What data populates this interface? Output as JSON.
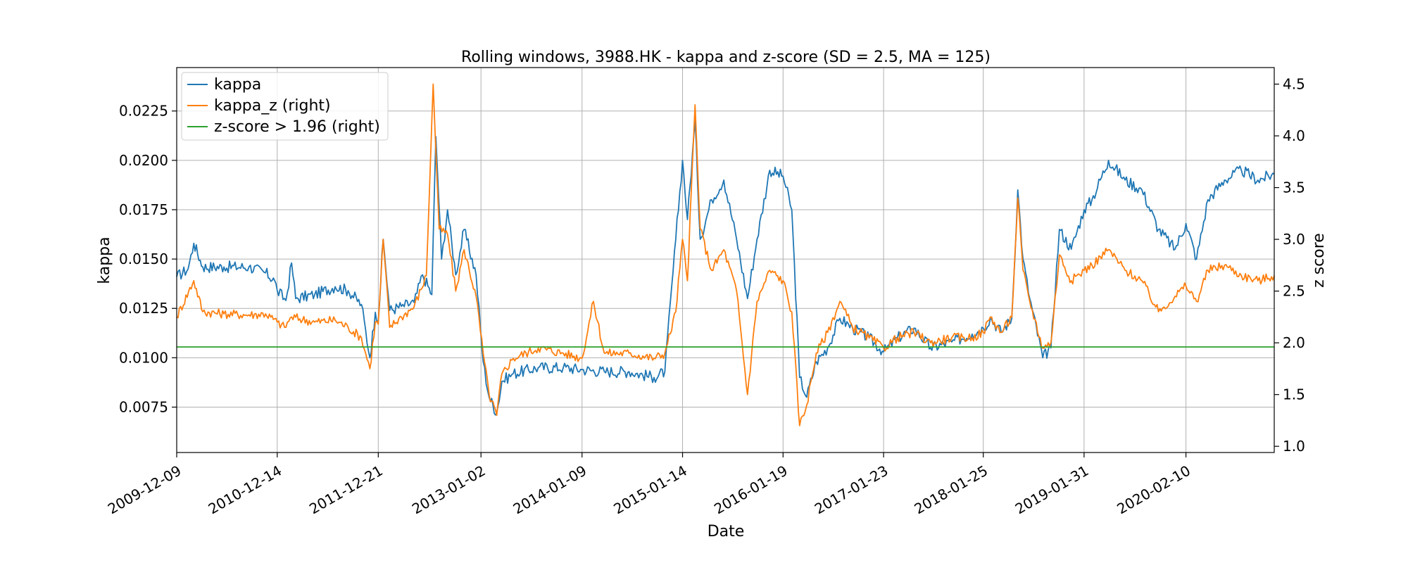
{
  "chart_data": {
    "type": "line",
    "title": "Rolling windows, 3988.HK - kappa and z-score (SD = 2.5, MA = 125)",
    "xlabel": "Date",
    "ylabel": "kappa",
    "ylabel_right": "z score",
    "x_ticks": [
      "2009-12-09",
      "2010-12-14",
      "2011-12-21",
      "2013-01-02",
      "2014-01-09",
      "2015-01-14",
      "2016-01-19",
      "2017-01-23",
      "2018-01-25",
      "2019-01-31",
      "2020-02-10"
    ],
    "xlim": [
      "2009-12-09",
      "2020-12-31"
    ],
    "ylim": [
      0.0052,
      0.0247
    ],
    "ylim_right": [
      0.94,
      4.66
    ],
    "y_ticks": [
      "0.0075",
      "0.0100",
      "0.0125",
      "0.0150",
      "0.0175",
      "0.0200",
      "0.0225"
    ],
    "y_ticks_right": [
      "1.0",
      "1.5",
      "2.0",
      "2.5",
      "3.0",
      "3.5",
      "4.0",
      "4.5"
    ],
    "grid": true,
    "legend_position": "top-left",
    "colors": {
      "kappa": "#1f77b4",
      "kappa_z": "#ff7f0e",
      "threshold": "#2ca02c"
    },
    "series": [
      {
        "name": "kappa",
        "axis": "left",
        "points": [
          [
            "2009-12-09",
            0.0141
          ],
          [
            "2010-01-20",
            0.0145
          ],
          [
            "2010-02-10",
            0.0158
          ],
          [
            "2010-03-15",
            0.0146
          ],
          [
            "2010-06-01",
            0.0146
          ],
          [
            "2010-09-01",
            0.0146
          ],
          [
            "2010-11-01",
            0.0143
          ],
          [
            "2010-12-05",
            0.0139
          ],
          [
            "2010-12-14",
            0.0134
          ],
          [
            "2011-01-15",
            0.0129
          ],
          [
            "2011-02-05",
            0.0148
          ],
          [
            "2011-02-20",
            0.013
          ],
          [
            "2011-05-01",
            0.0132
          ],
          [
            "2011-07-15",
            0.0136
          ],
          [
            "2011-09-01",
            0.0134
          ],
          [
            "2011-10-20",
            0.0127
          ],
          [
            "2011-11-20",
            0.01
          ],
          [
            "2011-12-10",
            0.0123
          ],
          [
            "2011-12-21",
            0.0119
          ],
          [
            "2012-01-08",
            0.016
          ],
          [
            "2012-02-01",
            0.0124
          ],
          [
            "2012-03-15",
            0.0126
          ],
          [
            "2012-05-01",
            0.0128
          ],
          [
            "2012-06-01",
            0.0142
          ],
          [
            "2012-07-05",
            0.0132
          ],
          [
            "2012-07-20",
            0.0212
          ],
          [
            "2012-08-10",
            0.015
          ],
          [
            "2012-09-01",
            0.0175
          ],
          [
            "2012-10-01",
            0.0142
          ],
          [
            "2012-11-01",
            0.0165
          ],
          [
            "2012-12-15",
            0.0142
          ],
          [
            "2013-01-10",
            0.0098
          ],
          [
            "2013-02-01",
            0.008
          ],
          [
            "2013-03-01",
            0.0072
          ],
          [
            "2013-03-20",
            0.0088
          ],
          [
            "2013-05-01",
            0.0092
          ],
          [
            "2013-08-01",
            0.0095
          ],
          [
            "2013-11-01",
            0.0095
          ],
          [
            "2014-01-09",
            0.0094
          ],
          [
            "2014-04-01",
            0.0093
          ],
          [
            "2014-07-01",
            0.0093
          ],
          [
            "2014-10-01",
            0.009
          ],
          [
            "2014-11-10",
            0.0093
          ],
          [
            "2014-12-20",
            0.016
          ],
          [
            "2015-01-14",
            0.02
          ],
          [
            "2015-02-01",
            0.017
          ],
          [
            "2015-03-01",
            0.022
          ],
          [
            "2015-03-20",
            0.016
          ],
          [
            "2015-05-01",
            0.018
          ],
          [
            "2015-06-15",
            0.019
          ],
          [
            "2015-08-01",
            0.016
          ],
          [
            "2015-09-10",
            0.013
          ],
          [
            "2015-10-15",
            0.016
          ],
          [
            "2015-12-01",
            0.0195
          ],
          [
            "2016-01-19",
            0.0192
          ],
          [
            "2016-02-20",
            0.0175
          ],
          [
            "2016-03-20",
            0.009
          ],
          [
            "2016-04-15",
            0.008
          ],
          [
            "2016-05-20",
            0.0098
          ],
          [
            "2016-07-01",
            0.0105
          ],
          [
            "2016-08-15",
            0.012
          ],
          [
            "2016-10-01",
            0.0115
          ],
          [
            "2016-12-01",
            0.011
          ],
          [
            "2017-01-23",
            0.0103
          ],
          [
            "2017-03-15",
            0.011
          ],
          [
            "2017-05-15",
            0.0115
          ],
          [
            "2017-07-15",
            0.0105
          ],
          [
            "2017-10-01",
            0.0108
          ],
          [
            "2017-12-15",
            0.0112
          ],
          [
            "2018-01-25",
            0.0115
          ],
          [
            "2018-02-20",
            0.012
          ],
          [
            "2018-04-01",
            0.0113
          ],
          [
            "2018-05-10",
            0.012
          ],
          [
            "2018-06-01",
            0.0185
          ],
          [
            "2018-06-20",
            0.015
          ],
          [
            "2018-07-15",
            0.013
          ],
          [
            "2018-09-01",
            0.01
          ],
          [
            "2018-10-01",
            0.0105
          ],
          [
            "2018-11-01",
            0.0165
          ],
          [
            "2018-12-15",
            0.0155
          ],
          [
            "2019-01-31",
            0.0175
          ],
          [
            "2019-03-01",
            0.018
          ],
          [
            "2019-05-01",
            0.02
          ],
          [
            "2019-07-01",
            0.019
          ],
          [
            "2019-09-01",
            0.0185
          ],
          [
            "2019-11-01",
            0.0165
          ],
          [
            "2020-01-01",
            0.0155
          ],
          [
            "2020-02-10",
            0.0168
          ],
          [
            "2020-03-20",
            0.015
          ],
          [
            "2020-05-01",
            0.018
          ],
          [
            "2020-07-01",
            0.019
          ],
          [
            "2020-09-01",
            0.0195
          ],
          [
            "2020-11-01",
            0.019
          ],
          [
            "2020-12-31",
            0.0193
          ]
        ]
      },
      {
        "name": "kappa_z (right)",
        "axis": "right",
        "points": [
          [
            "2009-12-09",
            2.25
          ],
          [
            "2010-02-10",
            2.6
          ],
          [
            "2010-03-15",
            2.3
          ],
          [
            "2010-06-01",
            2.28
          ],
          [
            "2010-09-01",
            2.27
          ],
          [
            "2010-11-01",
            2.28
          ],
          [
            "2010-12-14",
            2.2
          ],
          [
            "2011-01-10",
            2.15
          ],
          [
            "2011-02-05",
            2.25
          ],
          [
            "2011-05-01",
            2.2
          ],
          [
            "2011-07-15",
            2.22
          ],
          [
            "2011-09-01",
            2.15
          ],
          [
            "2011-10-20",
            2.05
          ],
          [
            "2011-11-20",
            1.75
          ],
          [
            "2011-12-10",
            2.2
          ],
          [
            "2011-12-21",
            2.18
          ],
          [
            "2012-01-08",
            3.0
          ],
          [
            "2012-02-01",
            2.15
          ],
          [
            "2012-03-15",
            2.25
          ],
          [
            "2012-05-01",
            2.35
          ],
          [
            "2012-06-15",
            2.65
          ],
          [
            "2012-07-10",
            4.5
          ],
          [
            "2012-08-01",
            3.1
          ],
          [
            "2012-09-01",
            3.05
          ],
          [
            "2012-10-01",
            2.5
          ],
          [
            "2012-11-01",
            2.9
          ],
          [
            "2012-12-15",
            2.45
          ],
          [
            "2013-01-10",
            1.9
          ],
          [
            "2013-02-01",
            1.5
          ],
          [
            "2013-03-01",
            1.3
          ],
          [
            "2013-03-20",
            1.7
          ],
          [
            "2013-05-01",
            1.85
          ],
          [
            "2013-08-01",
            1.95
          ],
          [
            "2013-11-01",
            1.9
          ],
          [
            "2014-01-09",
            1.85
          ],
          [
            "2014-02-20",
            2.4
          ],
          [
            "2014-04-01",
            1.9
          ],
          [
            "2014-07-01",
            1.9
          ],
          [
            "2014-10-01",
            1.85
          ],
          [
            "2014-11-10",
            1.9
          ],
          [
            "2014-12-20",
            2.3
          ],
          [
            "2015-01-14",
            3.0
          ],
          [
            "2015-02-01",
            2.6
          ],
          [
            "2015-03-01",
            4.3
          ],
          [
            "2015-03-20",
            3.1
          ],
          [
            "2015-05-01",
            2.7
          ],
          [
            "2015-06-15",
            2.9
          ],
          [
            "2015-08-01",
            2.5
          ],
          [
            "2015-09-10",
            1.5
          ],
          [
            "2015-10-15",
            2.4
          ],
          [
            "2015-12-01",
            2.7
          ],
          [
            "2016-01-19",
            2.6
          ],
          [
            "2016-02-20",
            2.3
          ],
          [
            "2016-03-20",
            1.2
          ],
          [
            "2016-04-15",
            1.4
          ],
          [
            "2016-05-20",
            1.9
          ],
          [
            "2016-07-01",
            2.1
          ],
          [
            "2016-08-15",
            2.4
          ],
          [
            "2016-10-01",
            2.15
          ],
          [
            "2016-12-01",
            2.05
          ],
          [
            "2017-01-23",
            1.95
          ],
          [
            "2017-03-15",
            2.05
          ],
          [
            "2017-05-15",
            2.1
          ],
          [
            "2017-07-15",
            2.0
          ],
          [
            "2017-10-01",
            2.05
          ],
          [
            "2017-12-15",
            2.05
          ],
          [
            "2018-01-25",
            2.1
          ],
          [
            "2018-02-20",
            2.25
          ],
          [
            "2018-04-01",
            2.1
          ],
          [
            "2018-05-10",
            2.25
          ],
          [
            "2018-06-01",
            3.4
          ],
          [
            "2018-06-20",
            2.7
          ],
          [
            "2018-07-15",
            2.4
          ],
          [
            "2018-09-01",
            1.95
          ],
          [
            "2018-10-01",
            2.0
          ],
          [
            "2018-11-01",
            2.85
          ],
          [
            "2018-12-15",
            2.6
          ],
          [
            "2019-01-31",
            2.7
          ],
          [
            "2019-03-01",
            2.75
          ],
          [
            "2019-05-01",
            2.9
          ],
          [
            "2019-07-01",
            2.7
          ],
          [
            "2019-09-01",
            2.6
          ],
          [
            "2019-11-01",
            2.3
          ],
          [
            "2020-01-01",
            2.45
          ],
          [
            "2020-02-10",
            2.55
          ],
          [
            "2020-03-20",
            2.4
          ],
          [
            "2020-05-01",
            2.7
          ],
          [
            "2020-07-01",
            2.75
          ],
          [
            "2020-09-01",
            2.65
          ],
          [
            "2020-11-01",
            2.6
          ],
          [
            "2020-12-31",
            2.65
          ]
        ]
      },
      {
        "name": "z-score > 1.96 (right)",
        "axis": "right",
        "points": [
          [
            "2009-12-09",
            1.96
          ],
          [
            "2020-12-31",
            1.96
          ]
        ]
      }
    ]
  }
}
